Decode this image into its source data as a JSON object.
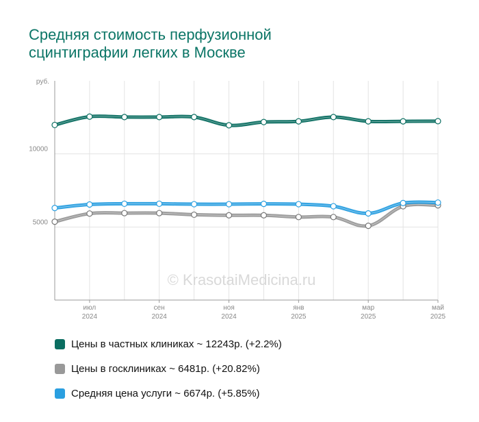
{
  "title_lines": [
    "Средняя стоимость перфузионной",
    "сцинтиграфии легких в Москве"
  ],
  "watermark": "© KrasotaiMedicina.ru",
  "chart_data": {
    "type": "line",
    "title": "Средняя стоимость перфузионной сцинтиграфии легких в Москве",
    "ylabel": "руб.",
    "ylim": [
      0,
      15000
    ],
    "yticks": [
      {
        "value": 5000,
        "label": "5000"
      },
      {
        "value": 10000,
        "label": "10000"
      }
    ],
    "x": [
      "2024-06",
      "2024-07",
      "2024-08",
      "2024-09",
      "2024-10",
      "2024-11",
      "2024-12",
      "2025-01",
      "2025-02",
      "2025-03",
      "2025-04",
      "2025-05"
    ],
    "xticks": [
      {
        "index": 1,
        "month": "июл",
        "year": "2024"
      },
      {
        "index": 3,
        "month": "сен",
        "year": "2024"
      },
      {
        "index": 5,
        "month": "ноя",
        "year": "2024"
      },
      {
        "index": 7,
        "month": "янв",
        "year": "2025"
      },
      {
        "index": 9,
        "month": "мар",
        "year": "2025"
      },
      {
        "index": 11,
        "month": "май",
        "year": "2025"
      }
    ],
    "grid": true,
    "legend_position": "bottom-left",
    "series": [
      {
        "name": "Цены в частных клиниках",
        "legend": "Цены в частных клиниках ~ 12243р. (+2.2%)",
        "color": "#0b6e61",
        "values": [
          11980,
          12550,
          12520,
          12520,
          12520,
          11960,
          12180,
          12230,
          12520,
          12230,
          12230,
          12240
        ]
      },
      {
        "name": "Цены в госклиниках",
        "legend": "Цены в госклиниках ~ 6481р. (+20.82%)",
        "color": "#999999",
        "values": [
          5360,
          5920,
          5950,
          5950,
          5840,
          5800,
          5800,
          5680,
          5680,
          5080,
          6420,
          6480
        ]
      },
      {
        "name": "Средняя цена услуги",
        "legend": "Средняя цена услуги ~ 6674р. (+5.85%)",
        "color": "#2a9fe0",
        "values": [
          6300,
          6540,
          6590,
          6590,
          6560,
          6560,
          6580,
          6560,
          6420,
          5930,
          6640,
          6670
        ]
      }
    ]
  }
}
